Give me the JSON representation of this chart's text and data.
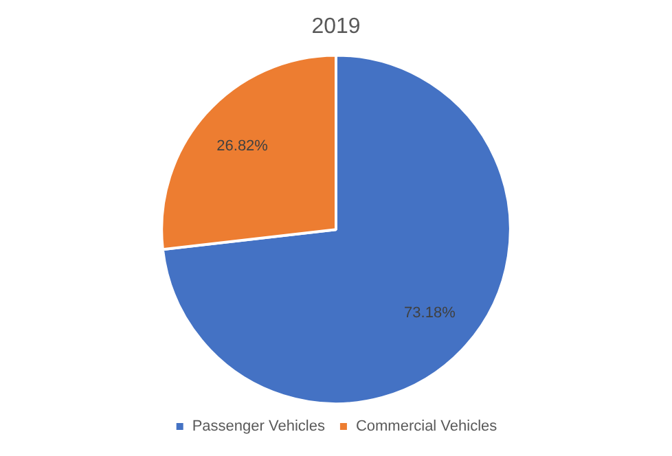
{
  "chart_data": {
    "type": "pie",
    "title": "2019",
    "categories": [
      "Passenger Vehicles",
      "Commercial Vehicles"
    ],
    "values": [
      73.18,
      26.82
    ],
    "colors": [
      "#4472c4",
      "#ed7d31"
    ],
    "value_labels": [
      "73.18%",
      "26.82%"
    ],
    "legend": "bottom"
  }
}
